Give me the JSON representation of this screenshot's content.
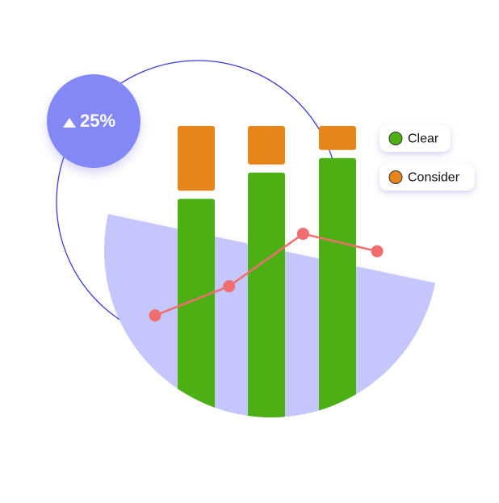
{
  "badge": {
    "text": "25%"
  },
  "chart_data": {
    "type": "bar",
    "series": [
      {
        "name": "Clear",
        "color": "#4cb014",
        "values": [
          75,
          84,
          89
        ]
      },
      {
        "name": "Consider",
        "color": "#e6861a",
        "values": [
          25,
          16,
          11
        ]
      }
    ],
    "line": {
      "color": "#f26d6d",
      "values": [
        35,
        45,
        63,
        57
      ]
    },
    "ylim": [
      0,
      100
    ]
  }
}
